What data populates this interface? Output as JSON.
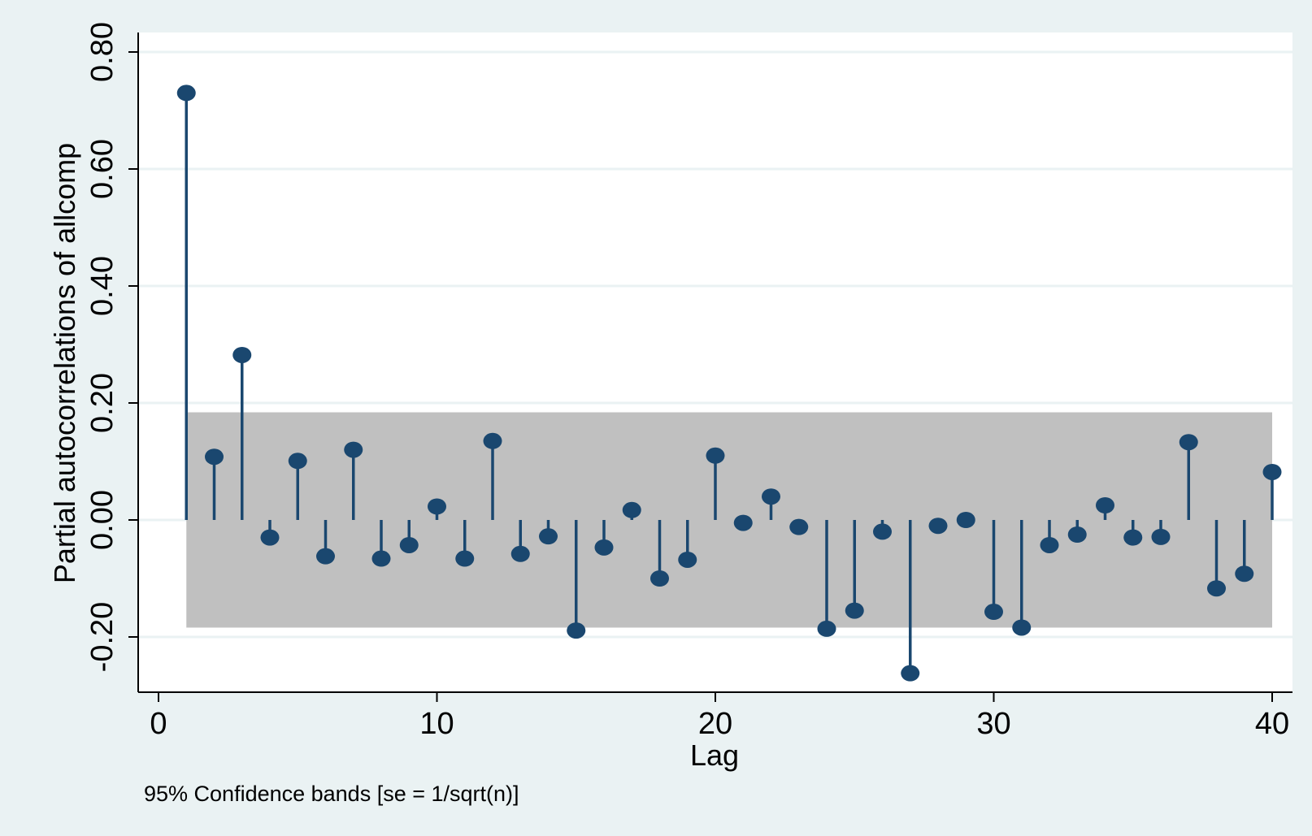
{
  "chart_data": {
    "type": "scatter",
    "style": "stem",
    "title": "",
    "xlabel": "Lag",
    "ylabel": "Partial autocorrelations of allcomp",
    "note": "95% Confidence bands [se = 1/sqrt(n)]",
    "xlim": [
      0,
      40
    ],
    "ylim": [
      -0.295,
      0.83
    ],
    "x_ticks": [
      0,
      10,
      20,
      30,
      40
    ],
    "y_ticks": [
      -0.2,
      0.0,
      0.2,
      0.4,
      0.6,
      0.8
    ],
    "y_tick_labels": [
      "-0.20",
      "0.00",
      "0.20",
      "0.40",
      "0.60",
      "0.80"
    ],
    "confidence_band": {
      "lower": -0.184,
      "upper": 0.184,
      "x_range": [
        1,
        40
      ]
    },
    "grid": true,
    "legend": "none",
    "series": [
      {
        "x": [
          1,
          2,
          3,
          4,
          5,
          6,
          7,
          8,
          9,
          10,
          11,
          12,
          13,
          14,
          15,
          16,
          17,
          18,
          19,
          20,
          21,
          22,
          23,
          24,
          25,
          26,
          27,
          28,
          29,
          30,
          31,
          32,
          33,
          34,
          35,
          36,
          37,
          38,
          39,
          40
        ],
        "values": [
          0.73,
          0.108,
          0.282,
          -0.03,
          0.101,
          -0.062,
          0.12,
          -0.066,
          -0.043,
          0.023,
          -0.066,
          0.135,
          -0.058,
          -0.028,
          -0.189,
          -0.047,
          0.017,
          -0.1,
          -0.068,
          0.11,
          -0.005,
          0.04,
          -0.012,
          -0.186,
          -0.155,
          -0.02,
          -0.262,
          -0.01,
          0.0,
          -0.157,
          -0.184,
          -0.043,
          -0.025,
          0.025,
          -0.03,
          -0.029,
          0.133,
          -0.117,
          -0.092,
          0.082
        ]
      }
    ],
    "colors": {
      "outer_background": "#eaf2f3",
      "plot_background": "#ffffff",
      "band": "#c0c0c0",
      "marker": "#1a476f",
      "grid": "#eaf2f3",
      "axis": "#000000"
    }
  }
}
